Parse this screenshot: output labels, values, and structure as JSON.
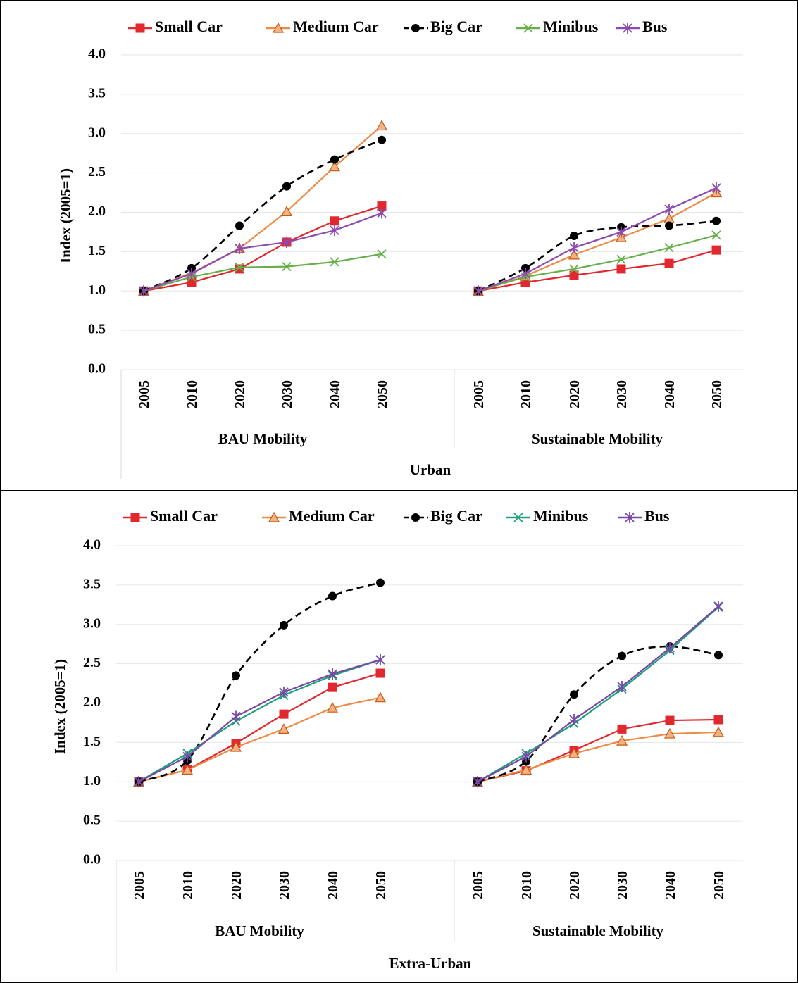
{
  "chart_data": [
    {
      "type": "line",
      "title": "",
      "ylabel": "Index (2005=1)",
      "outer_label": "Urban",
      "groups": [
        "BAU Mobility",
        "Sustainable Mobility"
      ],
      "x": [
        "2005",
        "2010",
        "2020",
        "2030",
        "2040",
        "2050"
      ],
      "ylim": [
        0,
        4
      ],
      "yticks": [
        "0.0",
        "0.5",
        "1.0",
        "1.5",
        "2.0",
        "2.5",
        "3.0",
        "3.5",
        "4.0"
      ],
      "legend_position": "top",
      "series": [
        {
          "name": "Small Car",
          "color": "#e0282e",
          "marker": "square",
          "dash": false,
          "values": [
            [
              1.0,
              1.11,
              1.28,
              1.62,
              1.89,
              2.08
            ],
            [
              1.0,
              1.11,
              1.2,
              1.28,
              1.35,
              1.52
            ]
          ]
        },
        {
          "name": "Medium Car",
          "color": "#ed8b45",
          "marker": "triangle",
          "dash": false,
          "values": [
            [
              1.0,
              1.23,
              1.54,
              2.01,
              2.58,
              3.1
            ],
            [
              1.0,
              1.19,
              1.46,
              1.68,
              1.92,
              2.25
            ]
          ]
        },
        {
          "name": "Big Car",
          "color": "#000000",
          "marker": "circle",
          "dash": true,
          "values": [
            [
              1.0,
              1.29,
              1.83,
              2.33,
              2.67,
              2.92
            ],
            [
              1.0,
              1.29,
              1.7,
              1.81,
              1.83,
              1.89
            ]
          ]
        },
        {
          "name": "Minibus",
          "color": "#66b04a",
          "marker": "x",
          "dash": false,
          "values": [
            [
              1.0,
              1.18,
              1.3,
              1.31,
              1.37,
              1.47
            ],
            [
              1.0,
              1.18,
              1.28,
              1.4,
              1.55,
              1.71
            ]
          ]
        },
        {
          "name": "Bus",
          "color": "#8c4bb0",
          "marker": "star",
          "dash": false,
          "values": [
            [
              1.0,
              1.22,
              1.54,
              1.62,
              1.77,
              1.99
            ],
            [
              1.0,
              1.22,
              1.55,
              1.75,
              2.04,
              2.31
            ]
          ]
        }
      ]
    },
    {
      "type": "line",
      "title": "",
      "ylabel": "Index (2005=1)",
      "outer_label": "Extra-Urban",
      "groups": [
        "BAU Mobility",
        "Sustainable Mobility"
      ],
      "x": [
        "2005",
        "2010",
        "2020",
        "2030",
        "2040",
        "2050"
      ],
      "ylim": [
        0,
        4
      ],
      "yticks": [
        "0.0",
        "0.5",
        "1.0",
        "1.5",
        "2.0",
        "2.5",
        "3.0",
        "3.5",
        "4.0"
      ],
      "legend_position": "top",
      "series": [
        {
          "name": "Small Car",
          "color": "#e0282e",
          "marker": "square",
          "dash": false,
          "values": [
            [
              1.0,
              1.15,
              1.49,
              1.86,
              2.2,
              2.38
            ],
            [
              1.0,
              1.14,
              1.4,
              1.67,
              1.78,
              1.79
            ]
          ]
        },
        {
          "name": "Medium Car",
          "color": "#ed8b45",
          "marker": "triangle",
          "dash": false,
          "values": [
            [
              1.0,
              1.15,
              1.44,
              1.67,
              1.94,
              2.07
            ],
            [
              1.0,
              1.15,
              1.36,
              1.52,
              1.61,
              1.63
            ]
          ]
        },
        {
          "name": "Big Car",
          "color": "#000000",
          "marker": "circle",
          "dash": true,
          "values": [
            [
              1.0,
              1.27,
              2.35,
              2.99,
              3.36,
              3.53
            ],
            [
              1.0,
              1.26,
              2.11,
              2.6,
              2.72,
              2.61
            ]
          ]
        },
        {
          "name": "Minibus",
          "color": "#1aa37a",
          "marker": "x",
          "dash": false,
          "values": [
            [
              1.0,
              1.36,
              1.77,
              2.1,
              2.35,
              2.55
            ],
            [
              1.0,
              1.36,
              1.74,
              2.18,
              2.67,
              3.22
            ]
          ]
        },
        {
          "name": "Bus",
          "color": "#7a46a8",
          "marker": "star",
          "dash": false,
          "values": [
            [
              1.0,
              1.32,
              1.83,
              2.14,
              2.37,
              2.55
            ],
            [
              1.0,
              1.32,
              1.79,
              2.21,
              2.7,
              3.23
            ]
          ]
        }
      ]
    }
  ]
}
